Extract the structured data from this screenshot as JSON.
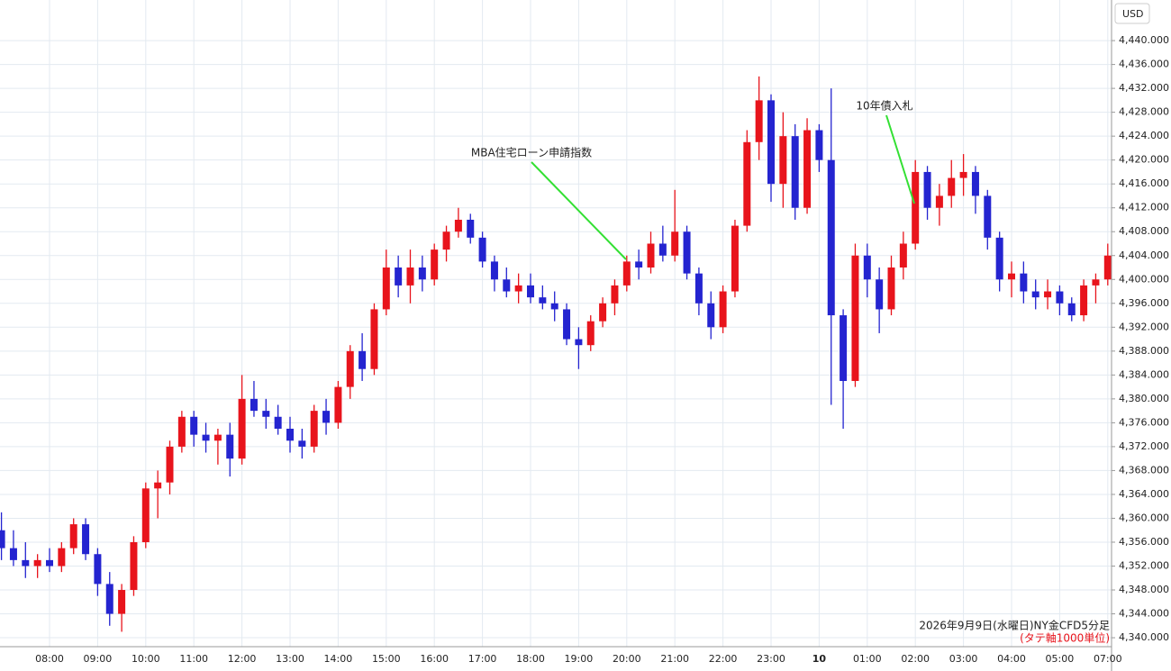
{
  "chart_data": {
    "type": "candlestick",
    "currency": "USD",
    "caption": "2026年9月9日(水曜日)NY金CFD5分足",
    "subcaption": "(タテ軸1000単位)",
    "annotations": [
      {
        "text": "MBA住宅ローン申請指数"
      },
      {
        "text": "10年債入札"
      }
    ],
    "up_color": "#e8141c",
    "down_color": "#2424d0",
    "grid": true,
    "categories": [
      null,
      null,
      null,
      null,
      "08:00",
      null,
      null,
      null,
      "09:00",
      null,
      null,
      null,
      "10:00",
      null,
      null,
      null,
      "11:00",
      null,
      null,
      null,
      "12:00",
      null,
      null,
      null,
      "13:00",
      null,
      null,
      null,
      "14:00",
      null,
      null,
      null,
      "15:00",
      null,
      null,
      null,
      "16:00",
      null,
      null,
      null,
      "17:00",
      null,
      null,
      null,
      "18:00",
      null,
      null,
      null,
      "19:00",
      null,
      null,
      null,
      "20:00",
      null,
      null,
      null,
      "21:00",
      null,
      null,
      null,
      "22:00",
      null,
      null,
      null,
      "23:00",
      null,
      null,
      null,
      "10",
      null,
      null,
      null,
      "01:00",
      null,
      null,
      null,
      "02:00",
      null,
      null,
      null,
      "03:00",
      null,
      null,
      null,
      "04:00",
      null,
      null,
      null,
      "05:00",
      null,
      null,
      null,
      "07:00"
    ],
    "open": [
      4358,
      4355,
      4353,
      4352,
      4353,
      4352,
      4355,
      4359,
      4354,
      4349,
      4344,
      4348,
      4356,
      4365,
      4366,
      4372,
      4377,
      4374,
      4373,
      4374,
      4370,
      4380,
      4378,
      4377,
      4375,
      4373,
      4372,
      4378,
      4376,
      4382,
      4388,
      4385,
      4395,
      4402,
      4399,
      4402,
      4400,
      4405,
      4408,
      4410,
      4407,
      4403,
      4400,
      4398,
      4399,
      4397,
      4396,
      4395,
      4390,
      4389,
      4393,
      4396,
      4399,
      4403,
      4402,
      4406,
      4404,
      4408,
      4401,
      4396,
      4392,
      4398,
      4409,
      4423,
      4430,
      4416,
      4424,
      4412,
      4425,
      4420,
      4394,
      4383,
      4404,
      4400,
      4395,
      4402,
      4406,
      4418,
      4412,
      4414,
      4417,
      4418,
      4414,
      4407,
      4400,
      4401,
      4398,
      4397,
      4398,
      4396,
      4394,
      4399,
      4400
    ],
    "high": [
      4361,
      4358,
      4356,
      4354,
      4355,
      4356,
      4360,
      4360,
      4355,
      4351,
      4349,
      4357,
      4366,
      4368,
      4373,
      4378,
      4378,
      4376,
      4375,
      4376,
      4384,
      4383,
      4380,
      4379,
      4377,
      4375,
      4379,
      4380,
      4383,
      4389,
      4391,
      4396,
      4405,
      4404,
      4405,
      4404,
      4406,
      4409,
      4412,
      4411,
      4408,
      4404,
      4402,
      4401,
      4401,
      4399,
      4398,
      4396,
      4392,
      4394,
      4397,
      4400,
      4404,
      4405,
      4408,
      4409,
      4415,
      4409,
      4402,
      4398,
      4399,
      4410,
      4425,
      4434,
      4431,
      4428,
      4426,
      4427,
      4426,
      4432,
      4395,
      4406,
      4406,
      4402,
      4404,
      4408,
      4420,
      4419,
      4416,
      4420,
      4421,
      4419,
      4415,
      4408,
      4403,
      4403,
      4400,
      4400,
      4399,
      4397,
      4400,
      4401,
      4406
    ],
    "low": [
      4353,
      4352,
      4350,
      4350,
      4351,
      4351,
      4354,
      4353,
      4347,
      4342,
      4341,
      4347,
      4355,
      4360,
      4364,
      4371,
      4372,
      4371,
      4369,
      4367,
      4369,
      4377,
      4375,
      4374,
      4371,
      4370,
      4371,
      4374,
      4375,
      4380,
      4383,
      4384,
      4394,
      4397,
      4396,
      4398,
      4399,
      4403,
      4407,
      4406,
      4402,
      4398,
      4397,
      4396,
      4396,
      4395,
      4393,
      4389,
      4385,
      4388,
      4392,
      4394,
      4398,
      4400,
      4401,
      4403,
      4403,
      4400,
      4394,
      4390,
      4391,
      4397,
      4408,
      4420,
      4413,
      4412,
      4410,
      4411,
      4418,
      4379,
      4375,
      4382,
      4397,
      4391,
      4394,
      4400,
      4405,
      4410,
      4409,
      4412,
      4414,
      4411,
      4405,
      4398,
      4397,
      4396,
      4395,
      4395,
      4394,
      4393,
      4393,
      4396,
      4399
    ],
    "close": [
      4355,
      4353,
      4352,
      4353,
      4352,
      4355,
      4359,
      4354,
      4349,
      4344,
      4348,
      4356,
      4365,
      4366,
      4372,
      4377,
      4374,
      4373,
      4374,
      4370,
      4380,
      4378,
      4377,
      4375,
      4373,
      4372,
      4378,
      4376,
      4382,
      4388,
      4385,
      4395,
      4402,
      4399,
      4402,
      4400,
      4405,
      4408,
      4410,
      4407,
      4403,
      4400,
      4398,
      4399,
      4397,
      4396,
      4395,
      4390,
      4389,
      4393,
      4396,
      4399,
      4403,
      4402,
      4406,
      4404,
      4408,
      4401,
      4396,
      4392,
      4398,
      4409,
      4423,
      4430,
      4416,
      4424,
      4412,
      4425,
      4420,
      4394,
      4383,
      4404,
      4400,
      4395,
      4402,
      4406,
      4418,
      4412,
      4414,
      4417,
      4418,
      4414,
      4407,
      4400,
      4401,
      4398,
      4397,
      4398,
      4396,
      4394,
      4399,
      4400,
      4404
    ],
    "ylim": [
      4338.5,
      4446.8
    ],
    "yticks": [
      {
        "value": 4340,
        "label": "4,340.000"
      },
      {
        "value": 4344,
        "label": "4,344.000"
      },
      {
        "value": 4348,
        "label": "4,348.000"
      },
      {
        "value": 4352,
        "label": "4,352.000"
      },
      {
        "value": 4356,
        "label": "4,356.000"
      },
      {
        "value": 4360,
        "label": "4,360.000"
      },
      {
        "value": 4364,
        "label": "4,364.000"
      },
      {
        "value": 4368,
        "label": "4,368.000"
      },
      {
        "value": 4372,
        "label": "4,372.000"
      },
      {
        "value": 4376,
        "label": "4,376.000"
      },
      {
        "value": 4380,
        "label": "4,380.000"
      },
      {
        "value": 4384,
        "label": "4,384.000"
      },
      {
        "value": 4388,
        "label": "4,388.000"
      },
      {
        "value": 4392,
        "label": "4,392.000"
      },
      {
        "value": 4396,
        "label": "4,396.000"
      },
      {
        "value": 4400,
        "label": "4,400.000"
      },
      {
        "value": 4404,
        "label": "4,404.000"
      },
      {
        "value": 4408,
        "label": "4,408.000"
      },
      {
        "value": 4412,
        "label": "4,412.000"
      },
      {
        "value": 4416,
        "label": "4,416.000"
      },
      {
        "value": 4420,
        "label": "4,420.000"
      },
      {
        "value": 4424,
        "label": "4,424.000"
      },
      {
        "value": 4428,
        "label": "4,428.000"
      },
      {
        "value": 4432,
        "label": "4,432.000"
      },
      {
        "value": 4436,
        "label": "4,436.000"
      },
      {
        "value": 4440,
        "label": "4,440.000"
      }
    ]
  }
}
